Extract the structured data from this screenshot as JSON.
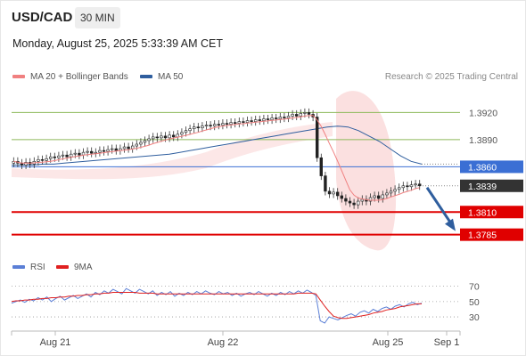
{
  "header": {
    "symbol": "USD/CAD",
    "timeframe": "30 MIN"
  },
  "datetime": "Monday, August 25, 2025 5:33:39 AM CET",
  "legend": {
    "ma20_label": "MA 20 + Bollinger Bands",
    "ma20_color": "#f08080",
    "ma50_label": "MA 50",
    "ma50_color": "#2f5e9e"
  },
  "copyright": "Research © 2025 Trading Central",
  "rsi_legend": {
    "rsi_label": "RSI",
    "rsi_color": "#5b7fd6",
    "ma_label": "9MA",
    "ma_color": "#e02020"
  },
  "chart_data": [
    {
      "type": "candlestick",
      "title": "USD/CAD 30 MIN",
      "y_range": [
        1.3765,
        1.3945
      ],
      "x_ticks": [
        "Aug 21",
        "Aug 22",
        "Aug 25",
        "Sep 1"
      ],
      "levels": [
        {
          "value": 1.392,
          "label": "1.3920",
          "kind": "resistance",
          "color": "#8db95a"
        },
        {
          "value": 1.389,
          "label": "1.3890",
          "kind": "resistance",
          "color": "#8db95a"
        },
        {
          "value": 1.386,
          "label": "1.3860",
          "kind": "pivot",
          "color": "#3b6fd4"
        },
        {
          "value": 1.3839,
          "label": "1.3839",
          "kind": "last_price",
          "color": "#333333"
        },
        {
          "value": 1.381,
          "label": "1.3810",
          "kind": "target",
          "color": "#e00000"
        },
        {
          "value": 1.3785,
          "label": "1.3785",
          "kind": "target",
          "color": "#e00000"
        }
      ],
      "close_series": [
        1.3866,
        1.3864,
        1.3862,
        1.3865,
        1.3863,
        1.3866,
        1.3868,
        1.3867,
        1.3869,
        1.3871,
        1.387,
        1.3872,
        1.3873,
        1.3871,
        1.3874,
        1.3875,
        1.3873,
        1.3876,
        1.3877,
        1.3875,
        1.3876,
        1.3878,
        1.3877,
        1.3879,
        1.388,
        1.3878,
        1.388,
        1.3882,
        1.388,
        1.3883,
        1.3885,
        1.3887,
        1.3889,
        1.3891,
        1.3893,
        1.3892,
        1.3894,
        1.3892,
        1.3895,
        1.3893,
        1.3896,
        1.3898,
        1.39,
        1.3902,
        1.3904,
        1.3903,
        1.3905,
        1.3906,
        1.3905,
        1.3907,
        1.3906,
        1.3908,
        1.3907,
        1.3909,
        1.3908,
        1.391,
        1.3909,
        1.3911,
        1.391,
        1.3912,
        1.3911,
        1.3913,
        1.3912,
        1.3914,
        1.3913,
        1.3915,
        1.3914,
        1.3916,
        1.3918,
        1.3916,
        1.3919,
        1.392,
        1.3918,
        1.3915,
        1.387,
        1.385,
        1.3833,
        1.383,
        1.3832,
        1.3828,
        1.3825,
        1.3822,
        1.382,
        1.3818,
        1.3822,
        1.3824,
        1.3822,
        1.3826,
        1.3828,
        1.3825,
        1.3829,
        1.3831,
        1.3833,
        1.3835,
        1.3837,
        1.3839,
        1.3838,
        1.384,
        1.3841,
        1.3839
      ],
      "ma50_series": [
        1.3862,
        1.3862,
        1.3862,
        1.3863,
        1.3863,
        1.3864,
        1.3865,
        1.3866,
        1.3867,
        1.3868,
        1.3869,
        1.387,
        1.3871,
        1.3872,
        1.3873,
        1.3874,
        1.3876,
        1.3878,
        1.388,
        1.3882,
        1.3884,
        1.3886,
        1.3888,
        1.389,
        1.3892,
        1.3894,
        1.3896,
        1.3898,
        1.39,
        1.3902,
        1.3904,
        1.3905,
        1.3904,
        1.39,
        1.3894,
        1.3888,
        1.388,
        1.3872,
        1.3866,
        1.3863
      ],
      "projection": {
        "from": 1.3839,
        "to": 1.3785
      }
    },
    {
      "type": "line",
      "title": "RSI",
      "y_range": [
        15,
        80
      ],
      "y_ticks": [
        "70",
        "50",
        "30"
      ],
      "series": [
        {
          "name": "RSI",
          "values": [
            48,
            50,
            52,
            49,
            53,
            51,
            55,
            52,
            56,
            50,
            54,
            57,
            52,
            55,
            58,
            54,
            57,
            60,
            56,
            62,
            59,
            64,
            61,
            66,
            63,
            60,
            67,
            64,
            61,
            66,
            63,
            60,
            64,
            58,
            62,
            59,
            63,
            57,
            61,
            58,
            62,
            59,
            63,
            60,
            64,
            61,
            59,
            63,
            60,
            62,
            58,
            61,
            57,
            60,
            62,
            59,
            63,
            60,
            57,
            61,
            58,
            62,
            59,
            63,
            60,
            64,
            61,
            65,
            62,
            58,
            25,
            22,
            30,
            28,
            26,
            29,
            32,
            34,
            31,
            36,
            38,
            35,
            40,
            37,
            41,
            43,
            40,
            44,
            46,
            43,
            47,
            49,
            46,
            48
          ]
        },
        {
          "name": "9MA",
          "values": [
            50,
            51,
            51,
            52,
            52,
            53,
            53,
            54,
            54,
            55,
            55,
            56,
            56,
            57,
            57,
            58,
            58,
            59,
            59,
            60,
            60,
            61,
            61,
            62,
            62,
            62,
            62,
            62,
            62,
            61,
            61,
            61,
            61,
            60,
            60,
            60,
            60,
            60,
            60,
            60,
            60,
            60,
            60,
            60,
            60,
            60,
            60,
            60,
            60,
            60,
            60,
            60,
            60,
            60,
            60,
            60,
            60,
            60,
            60,
            60,
            60,
            60,
            60,
            60,
            60,
            61,
            61,
            61,
            61,
            60,
            52,
            44,
            37,
            31,
            29,
            28,
            28,
            29,
            30,
            31,
            32,
            33,
            35,
            36,
            37,
            39,
            40,
            41,
            43,
            44,
            45,
            46,
            47,
            47
          ]
        }
      ]
    }
  ]
}
